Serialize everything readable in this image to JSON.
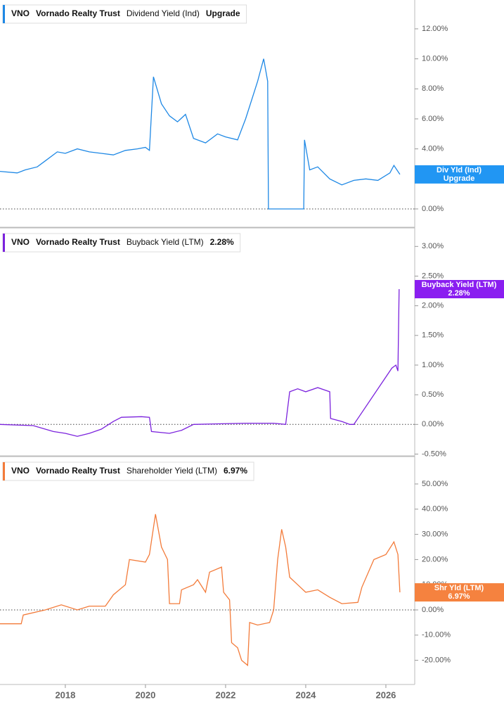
{
  "chart_data": [
    {
      "type": "line",
      "ticker": "VNO",
      "company": "Vornado Realty Trust",
      "tag_label": "Div Yld (Ind)",
      "xlim": [
        2016.37,
        2026.72
      ],
      "ylim": [
        -1.22,
        13.92
      ],
      "yticks": [
        {
          "value": 0,
          "label": "0.00%"
        },
        {
          "value": 2,
          "label": "2.00%"
        },
        {
          "value": 4,
          "label": "4.00%"
        },
        {
          "value": 6,
          "label": "6.00%"
        },
        {
          "value": 8,
          "label": "8.00%"
        },
        {
          "value": 10,
          "label": "10.00%"
        },
        {
          "value": 12,
          "label": "12.00%"
        }
      ],
      "series": [
        {
          "name": "Dividend Yield (Ind)",
          "color": "#1e88e5",
          "tag_color": "#2196f3",
          "current_label": "Upgrade",
          "x": [
            2016.37,
            2016.8,
            2017.0,
            2017.3,
            2017.5,
            2017.8,
            2018.0,
            2018.3,
            2018.6,
            2018.9,
            2019.2,
            2019.5,
            2019.8,
            2020.0,
            2020.1,
            2020.2,
            2020.4,
            2020.6,
            2020.8,
            2021.0,
            2021.2,
            2021.5,
            2021.8,
            2022.0,
            2022.3,
            2022.5,
            2022.8,
            2022.95,
            2023.05,
            2023.07,
            2023.95,
            2023.97,
            2024.1,
            2024.3,
            2024.6,
            2024.9,
            2025.2,
            2025.5,
            2025.8,
            2026.1,
            2026.2,
            2026.35
          ],
          "values": [
            2.5,
            2.4,
            2.6,
            2.8,
            3.2,
            3.8,
            3.7,
            4.0,
            3.8,
            3.7,
            3.6,
            3.9,
            4.0,
            4.1,
            3.9,
            8.8,
            7.0,
            6.2,
            5.8,
            6.3,
            4.7,
            4.4,
            5.0,
            4.8,
            4.6,
            6.0,
            8.5,
            10.0,
            8.5,
            0,
            0,
            4.6,
            2.6,
            2.8,
            2.0,
            1.6,
            1.9,
            2.0,
            1.9,
            2.4,
            2.9,
            2.3
          ]
        }
      ]
    },
    {
      "type": "line",
      "ticker": "VNO",
      "company": "Vornado Realty Trust",
      "tag_label": "Buyback Yield (LTM)",
      "xlim": [
        2016.37,
        2026.72
      ],
      "ylim": [
        -0.53,
        3.3
      ],
      "yticks": [
        {
          "value": -0.5,
          "label": "-0.50%"
        },
        {
          "value": 0,
          "label": "0.00%"
        },
        {
          "value": 0.5,
          "label": "0.50%"
        },
        {
          "value": 1,
          "label": "1.00%"
        },
        {
          "value": 1.5,
          "label": "1.50%"
        },
        {
          "value": 2,
          "label": "2.00%"
        },
        {
          "value": 2.5,
          "label": "2.50%"
        },
        {
          "value": 3,
          "label": "3.00%"
        }
      ],
      "series": [
        {
          "name": "Buyback Yield (LTM)",
          "color": "#7b22dd",
          "tag_color": "#8a1ef0",
          "current_label": "2.28%",
          "x": [
            2016.37,
            2017.2,
            2017.7,
            2018.0,
            2018.3,
            2018.6,
            2018.9,
            2019.2,
            2019.4,
            2019.9,
            2020.1,
            2020.15,
            2020.6,
            2020.9,
            2021.2,
            2021.8,
            2022.5,
            2023.2,
            2023.5,
            2023.6,
            2023.8,
            2024.0,
            2024.3,
            2024.6,
            2024.62,
            2024.9,
            2025.1,
            2025.2,
            2026.15,
            2026.25,
            2026.3,
            2026.33
          ],
          "values": [
            0,
            -0.02,
            -0.12,
            -0.15,
            -0.2,
            -0.15,
            -0.08,
            0.05,
            0.12,
            0.13,
            0.12,
            -0.12,
            -0.15,
            -0.1,
            0.0,
            0.01,
            0.02,
            0.02,
            0.0,
            0.55,
            0.6,
            0.55,
            0.62,
            0.55,
            0.1,
            0.05,
            0.0,
            0.0,
            0.95,
            1.0,
            0.9,
            2.28
          ]
        }
      ]
    },
    {
      "type": "line",
      "ticker": "VNO",
      "company": "Vornado Realty Trust",
      "tag_label": "Shr Yld (LTM)",
      "xlim": [
        2016.37,
        2026.72
      ],
      "ylim": [
        -29.6,
        60.6
      ],
      "xticks": [
        2018,
        2020,
        2022,
        2024,
        2026
      ],
      "yticks": [
        {
          "value": -20,
          "label": "-20.00%"
        },
        {
          "value": -10,
          "label": "-10.00%"
        },
        {
          "value": 0,
          "label": "0.00%"
        },
        {
          "value": 10,
          "label": "10.00%"
        },
        {
          "value": 20,
          "label": "20.00%"
        },
        {
          "value": 30,
          "label": "30.00%"
        },
        {
          "value": 40,
          "label": "40.00%"
        },
        {
          "value": 50,
          "label": "50.00%"
        }
      ],
      "series": [
        {
          "name": "Shareholder Yield (LTM)",
          "color": "#f37b3a",
          "tag_color": "#f5823f",
          "current_label": "6.97%",
          "x": [
            2016.37,
            2016.9,
            2016.95,
            2017.5,
            2017.9,
            2018.3,
            2018.6,
            2019.0,
            2019.2,
            2019.5,
            2019.6,
            2020.0,
            2020.1,
            2020.25,
            2020.4,
            2020.55,
            2020.6,
            2020.85,
            2020.9,
            2021.2,
            2021.3,
            2021.5,
            2021.6,
            2021.9,
            2021.95,
            2022.1,
            2022.15,
            2022.3,
            2022.4,
            2022.55,
            2022.6,
            2022.8,
            2023.1,
            2023.2,
            2023.3,
            2023.4,
            2023.5,
            2023.6,
            2023.8,
            2024.0,
            2024.3,
            2024.6,
            2024.9,
            2025.3,
            2025.4,
            2025.7,
            2026.0,
            2026.2,
            2026.3,
            2026.35
          ],
          "values": [
            -5.5,
            -5.5,
            -2,
            0,
            2,
            0,
            1.5,
            1.5,
            6,
            10,
            20,
            19,
            22,
            38,
            25,
            20,
            2.5,
            2.5,
            8,
            10,
            12,
            7,
            15,
            17,
            7,
            4,
            -13,
            -15,
            -20,
            -22,
            -5,
            -6,
            -5,
            0,
            20,
            32,
            25,
            13,
            10,
            7,
            8,
            5,
            2.5,
            3,
            9,
            20,
            22,
            27,
            22,
            6.97
          ]
        }
      ]
    }
  ]
}
